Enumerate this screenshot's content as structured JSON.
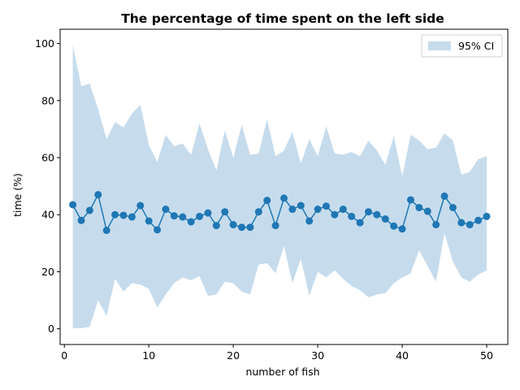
{
  "chart_data": {
    "type": "line",
    "title": "The percentage of time spent on the left side",
    "xlabel": "number of fish",
    "ylabel": "time (%)",
    "xlim": [
      -0.5,
      52.5
    ],
    "ylim": [
      -5.5,
      105
    ],
    "xticks": [
      0,
      10,
      20,
      30,
      40,
      50
    ],
    "yticks": [
      0,
      20,
      40,
      60,
      80,
      100
    ],
    "grid": false,
    "legend_position": "top-right",
    "colors": {
      "line": "#1f77b4",
      "band": "#c6dced"
    },
    "x": [
      1,
      2,
      3,
      4,
      5,
      6,
      7,
      8,
      9,
      10,
      11,
      12,
      13,
      14,
      15,
      16,
      17,
      18,
      19,
      20,
      21,
      22,
      23,
      24,
      25,
      26,
      27,
      28,
      29,
      30,
      31,
      32,
      33,
      34,
      35,
      36,
      37,
      38,
      39,
      40,
      41,
      42,
      43,
      44,
      45,
      46,
      47,
      48,
      49,
      50
    ],
    "series": [
      {
        "values": [
          43.5,
          38,
          41.5,
          47,
          34.5,
          40,
          39.8,
          39.2,
          43.2,
          37.8,
          34.7,
          41.9,
          39.6,
          39.2,
          37.5,
          39.4,
          40.6,
          36.2,
          41,
          36.5,
          35.6,
          35.6,
          41,
          45,
          36.2,
          45.8,
          41.9,
          43.2,
          37.8,
          41.9,
          43,
          40,
          41.9,
          39.4,
          37.2,
          41,
          40,
          38.5,
          36,
          35,
          45.2,
          42.5,
          41.2,
          36.5,
          46.5,
          42.5,
          37.2,
          36.5,
          38,
          39.4
        ]
      }
    ],
    "bands": [
      {
        "name": "95% CI",
        "lower": [
          0.2,
          0.2,
          0.7,
          10,
          4.5,
          17.5,
          13,
          16,
          15.5,
          14,
          7.5,
          12,
          16,
          18,
          17,
          18.5,
          11.5,
          12,
          16.5,
          16,
          13,
          12,
          22.5,
          23,
          19.5,
          29,
          16,
          24.5,
          11.5,
          20,
          18,
          20.5,
          17.5,
          15,
          13.5,
          11,
          12,
          12.5,
          16,
          18,
          19.5,
          27.5,
          22,
          16.5,
          33.5,
          23.5,
          18,
          16.5,
          19,
          20.5
        ],
        "upper": [
          99.5,
          85,
          86,
          77,
          66.5,
          72.5,
          70.5,
          75.5,
          78.5,
          64.5,
          58.5,
          68,
          64,
          65,
          61,
          72,
          63,
          55.5,
          69.5,
          60,
          71.5,
          61,
          61.5,
          73.5,
          60.5,
          62.5,
          69,
          58,
          66.5,
          60.5,
          71,
          61.5,
          61,
          62,
          60.5,
          66,
          62.5,
          57.5,
          67.5,
          53.5,
          68,
          66,
          63,
          63.5,
          68.5,
          66,
          54,
          55,
          59.5,
          60.5
        ]
      }
    ]
  }
}
